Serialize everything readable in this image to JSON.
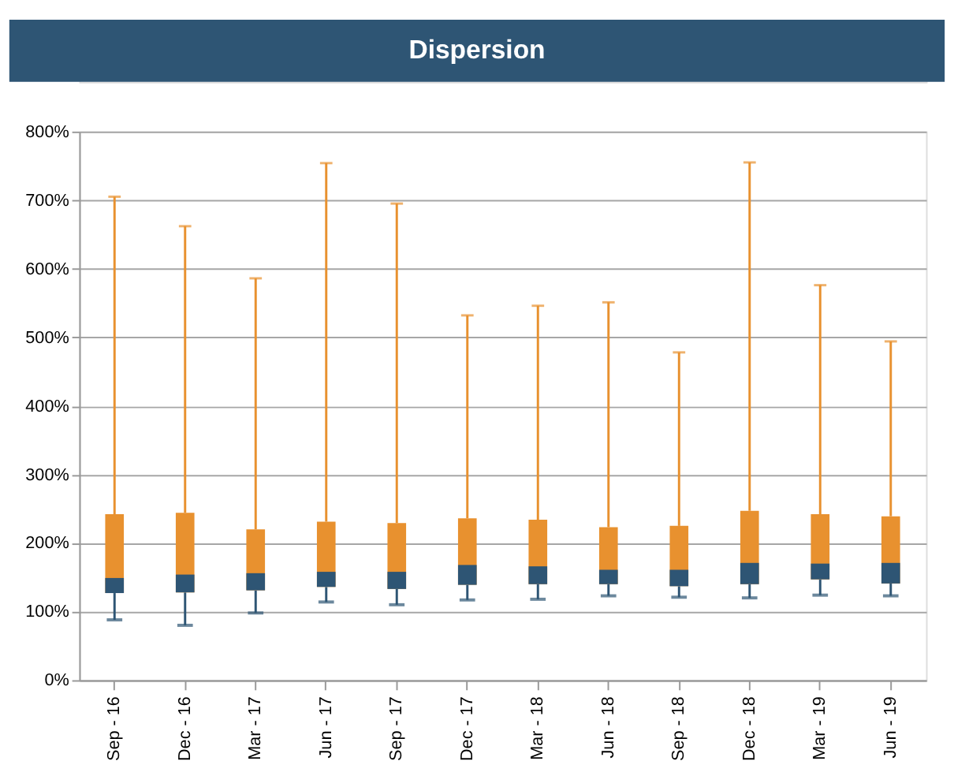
{
  "chart_data": {
    "type": "box",
    "title": "Dispersion",
    "categories": [
      "Sep - 16",
      "Dec - 16",
      "Mar - 17",
      "Jun - 17",
      "Sep - 17",
      "Dec - 17",
      "Mar - 18",
      "Jun - 18",
      "Sep - 18",
      "Dec - 18",
      "Mar - 19",
      "Jun - 19"
    ],
    "colors": [
      "#2e5574",
      "#2e5574",
      "#2e5574",
      "#2e5574",
      "#2e5574",
      "#2e5574",
      "#2e5574",
      "#2e5574",
      "#2e5574",
      "#2e5574",
      "#2e5574",
      "#2e5574"
    ],
    "series": [
      {
        "color": "#e8912f",
        "boxes": [
          {
            "low": 88,
            "q1": 127,
            "median": 149,
            "q3": 242,
            "high": 705
          },
          {
            "low": 80,
            "q1": 128,
            "median": 154,
            "q3": 244,
            "high": 662
          },
          {
            "low": 98,
            "q1": 131,
            "median": 156,
            "q3": 220,
            "high": 586
          },
          {
            "low": 114,
            "q1": 136,
            "median": 158,
            "q3": 231,
            "high": 754
          },
          {
            "low": 110,
            "q1": 133,
            "median": 158,
            "q3": 229,
            "high": 695
          },
          {
            "low": 117,
            "q1": 139,
            "median": 168,
            "q3": 236,
            "high": 532
          },
          {
            "low": 118,
            "q1": 140,
            "median": 166,
            "q3": 234,
            "high": 546
          },
          {
            "low": 123,
            "q1": 140,
            "median": 161,
            "q3": 223,
            "high": 551
          },
          {
            "low": 121,
            "q1": 137,
            "median": 161,
            "q3": 225,
            "high": 478
          },
          {
            "low": 120,
            "q1": 140,
            "median": 171,
            "q3": 247,
            "high": 755
          },
          {
            "low": 124,
            "q1": 147,
            "median": 170,
            "q3": 242,
            "high": 576
          },
          {
            "low": 123,
            "q1": 141,
            "median": 171,
            "q3": 239,
            "high": 494
          }
        ]
      }
    ],
    "ylim": [
      0,
      800
    ],
    "yticks": [
      {
        "value": 0,
        "label": "0%"
      },
      {
        "value": 100,
        "label": "100%"
      },
      {
        "value": 200,
        "label": "200%"
      },
      {
        "value": 300,
        "label": "300%"
      },
      {
        "value": 400,
        "label": "400%"
      },
      {
        "value": 500,
        "label": "500%"
      },
      {
        "value": 600,
        "label": "600%"
      },
      {
        "value": 700,
        "label": "700%"
      },
      {
        "value": 800,
        "label": "800%"
      }
    ],
    "grid": "y"
  }
}
